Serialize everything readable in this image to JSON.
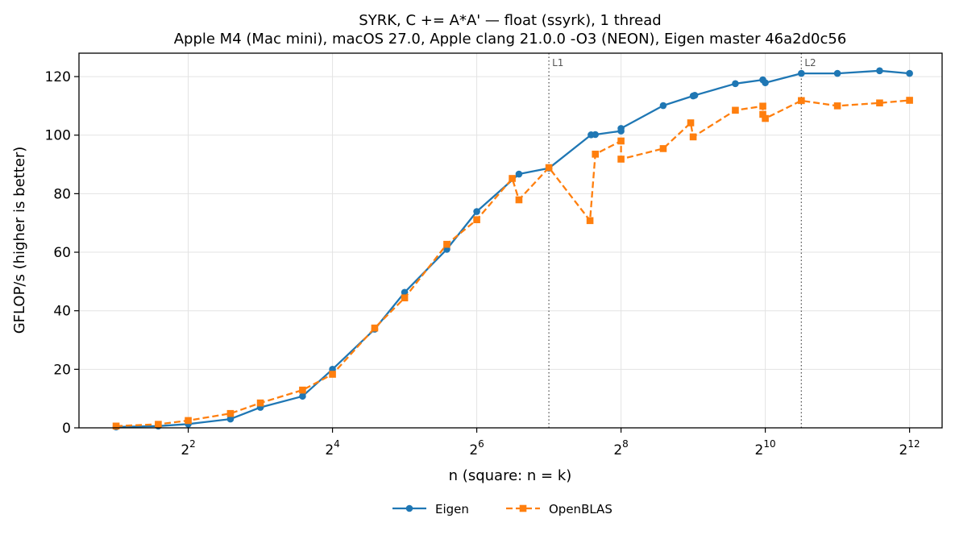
{
  "chart_data": {
    "type": "line",
    "title": "SYRK, C += A*A' — float (ssyrk), 1 thread",
    "subtitle": "Apple M4 (Mac mini), macOS 27.0, Apple clang 21.0.0 -O3 (NEON), Eigen master 46a2d0c56",
    "xlabel": "n (square: n = k)",
    "ylabel": "GFLOP/s (higher is better)",
    "x_scale": "log2",
    "xlim": [
      1.4,
      5600
    ],
    "ylim": [
      0,
      128
    ],
    "x_ticks": [
      {
        "value": 4,
        "base": "2",
        "exp": "2"
      },
      {
        "value": 16,
        "base": "2",
        "exp": "4"
      },
      {
        "value": 64,
        "base": "2",
        "exp": "6"
      },
      {
        "value": 256,
        "base": "2",
        "exp": "8"
      },
      {
        "value": 1024,
        "base": "2",
        "exp": "10"
      },
      {
        "value": 4096,
        "base": "2",
        "exp": "12"
      }
    ],
    "y_ticks": [
      {
        "value": 0,
        "label": "0"
      },
      {
        "value": 20,
        "label": "20"
      },
      {
        "value": 40,
        "label": "40"
      },
      {
        "value": 60,
        "label": "60"
      },
      {
        "value": 80,
        "label": "80"
      },
      {
        "value": 100,
        "label": "100"
      },
      {
        "value": 120,
        "label": "120"
      }
    ],
    "grid": true,
    "legend_position": "bottom-center",
    "vlines": [
      {
        "label": "L1",
        "x": 128
      },
      {
        "label": "L2",
        "x": 1448
      }
    ],
    "series": [
      {
        "name": "Eigen",
        "color": "#1f77b4",
        "marker": "circle",
        "linestyle": "solid",
        "x": [
          2,
          3,
          4,
          6,
          8,
          12,
          16,
          24,
          32,
          48,
          64,
          96,
          128,
          192,
          200,
          256,
          256,
          384,
          512,
          520,
          768,
          1000,
          1024,
          1448,
          2048,
          3072,
          4096
        ],
        "y": [
          0.3,
          0.6,
          1.3,
          3.0,
          7.0,
          10.8,
          20.0,
          33.7,
          46.3,
          61.0,
          73.9,
          86.7,
          88.7,
          100.1,
          100.2,
          101.4,
          102.3,
          110.1,
          113.4,
          113.6,
          117.6,
          118.9,
          117.9,
          121.1,
          121.1,
          122.0,
          121.1
        ]
      },
      {
        "name": "OpenBLAS",
        "color": "#ff7f0e",
        "marker": "square",
        "linestyle": "dashed",
        "x": [
          2,
          3,
          4,
          6,
          8,
          12,
          16,
          24,
          32,
          48,
          64,
          90,
          96,
          128,
          190,
          200,
          256,
          256,
          384,
          500,
          512,
          768,
          1000,
          1000,
          1024,
          1448,
          2048,
          3072,
          4096
        ],
        "y": [
          0.6,
          1.2,
          2.5,
          4.9,
          8.5,
          12.9,
          18.3,
          34.1,
          44.4,
          62.7,
          71.1,
          85.2,
          77.9,
          88.9,
          70.8,
          93.5,
          98.0,
          91.8,
          95.4,
          104.2,
          99.4,
          108.5,
          109.9,
          107.1,
          105.7,
          111.8,
          110.0,
          111.0,
          111.9
        ]
      }
    ]
  }
}
